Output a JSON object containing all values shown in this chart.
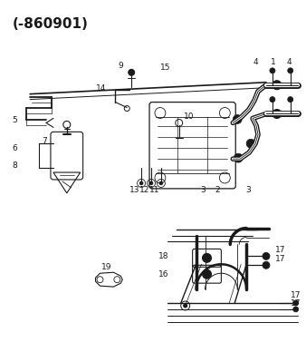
{
  "title": "(-860901)",
  "bg": "#ffffff",
  "lc": "#1a1a1a",
  "fig_w": 3.38,
  "fig_h": 3.88,
  "dpi": 100
}
